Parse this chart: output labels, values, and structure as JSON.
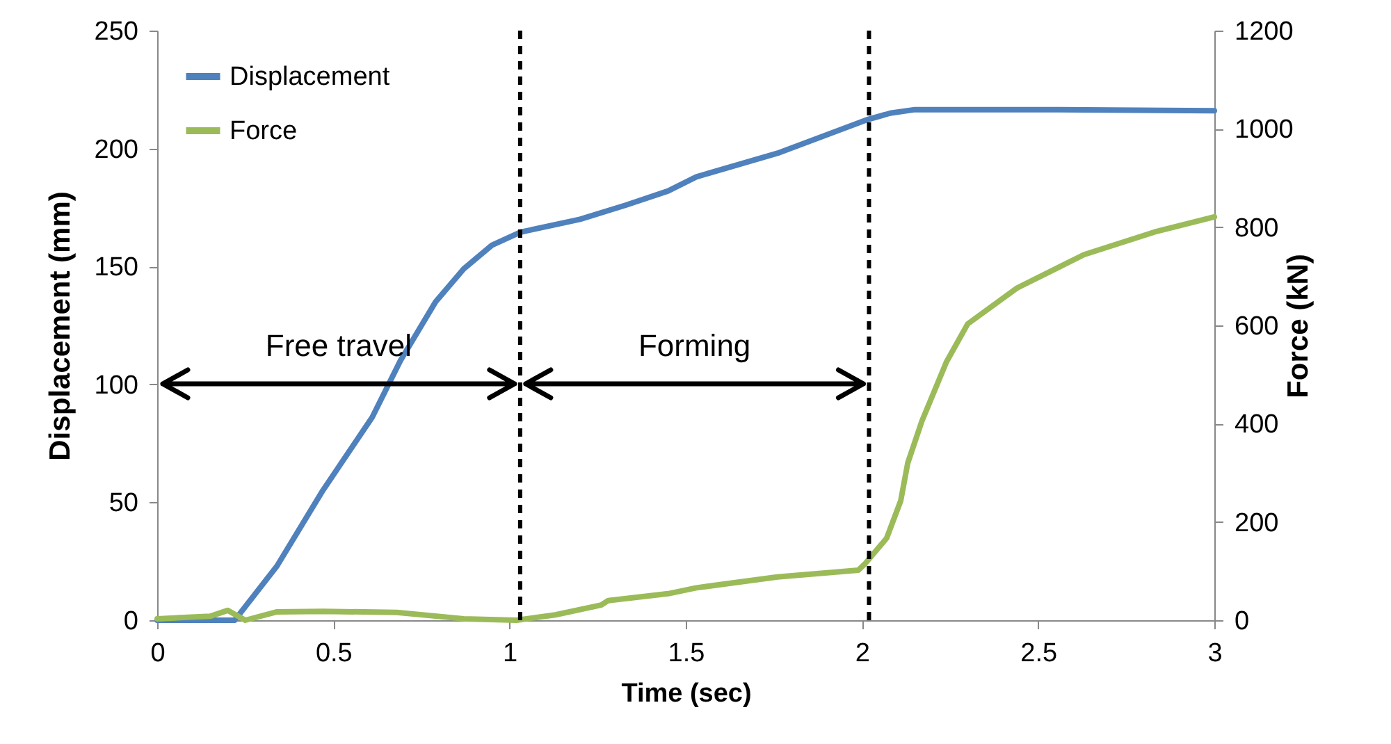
{
  "chart_data": {
    "type": "line",
    "xlabel": "Time (sec)",
    "ylabel": "Displacement (mm)",
    "y2label": "Force (kN)",
    "xlim": [
      0,
      3
    ],
    "xticks": [
      0,
      0.5,
      1,
      1.5,
      2,
      2.5,
      3
    ],
    "ylim": [
      0,
      250
    ],
    "yticks": [
      0,
      50,
      100,
      150,
      200,
      250
    ],
    "y2lim": [
      0,
      1200
    ],
    "y2ticks": [
      0,
      200,
      400,
      600,
      800,
      1000,
      1200
    ],
    "legend": "top left",
    "grid": false,
    "line_style": "solid",
    "marker": "none",
    "series": [
      {
        "name": "Displacement",
        "color": "#4f81bd",
        "x": [
          0,
          0.15,
          0.22,
          0.34,
          0.47,
          0.61,
          0.69,
          0.79,
          0.87,
          0.95,
          1.03,
          1.2,
          1.33,
          1.45,
          1.53,
          1.76,
          2.01,
          2.08,
          2.15,
          2.5,
          3.0
        ],
        "values": [
          0,
          0,
          0,
          23,
          55,
          86,
          110,
          135,
          149,
          159,
          164.5,
          170,
          176,
          182,
          188,
          198,
          212,
          215,
          216.5,
          216.5,
          216
        ]
      },
      {
        "name": "Force",
        "color": "#9bbb59",
        "axis": "y2",
        "x": [
          0,
          0.15,
          0.2,
          0.25,
          0.34,
          0.47,
          0.68,
          0.87,
          1.02,
          1.13,
          1.26,
          1.28,
          1.45,
          1.53,
          1.76,
          1.99,
          2.01,
          2.07,
          2.11,
          2.13,
          2.17,
          2.24,
          2.3,
          2.44,
          2.63,
          2.83,
          3.0
        ],
        "values": [
          3,
          8,
          20,
          0,
          17,
          18,
          16,
          3,
          0,
          11,
          31,
          40,
          54,
          66,
          88,
          102,
          116,
          167,
          243,
          320,
          405,
          526,
          603,
          676,
          744,
          790,
          821
        ]
      }
    ],
    "ref_lines": [
      {
        "axis": "x",
        "value": 1.03,
        "color": "#000000",
        "line_style": "dashed"
      },
      {
        "axis": "x",
        "value": 2.02,
        "color": "#000000",
        "line_style": "dashed"
      }
    ],
    "annotations": [
      "Free travel",
      "Forming"
    ]
  }
}
